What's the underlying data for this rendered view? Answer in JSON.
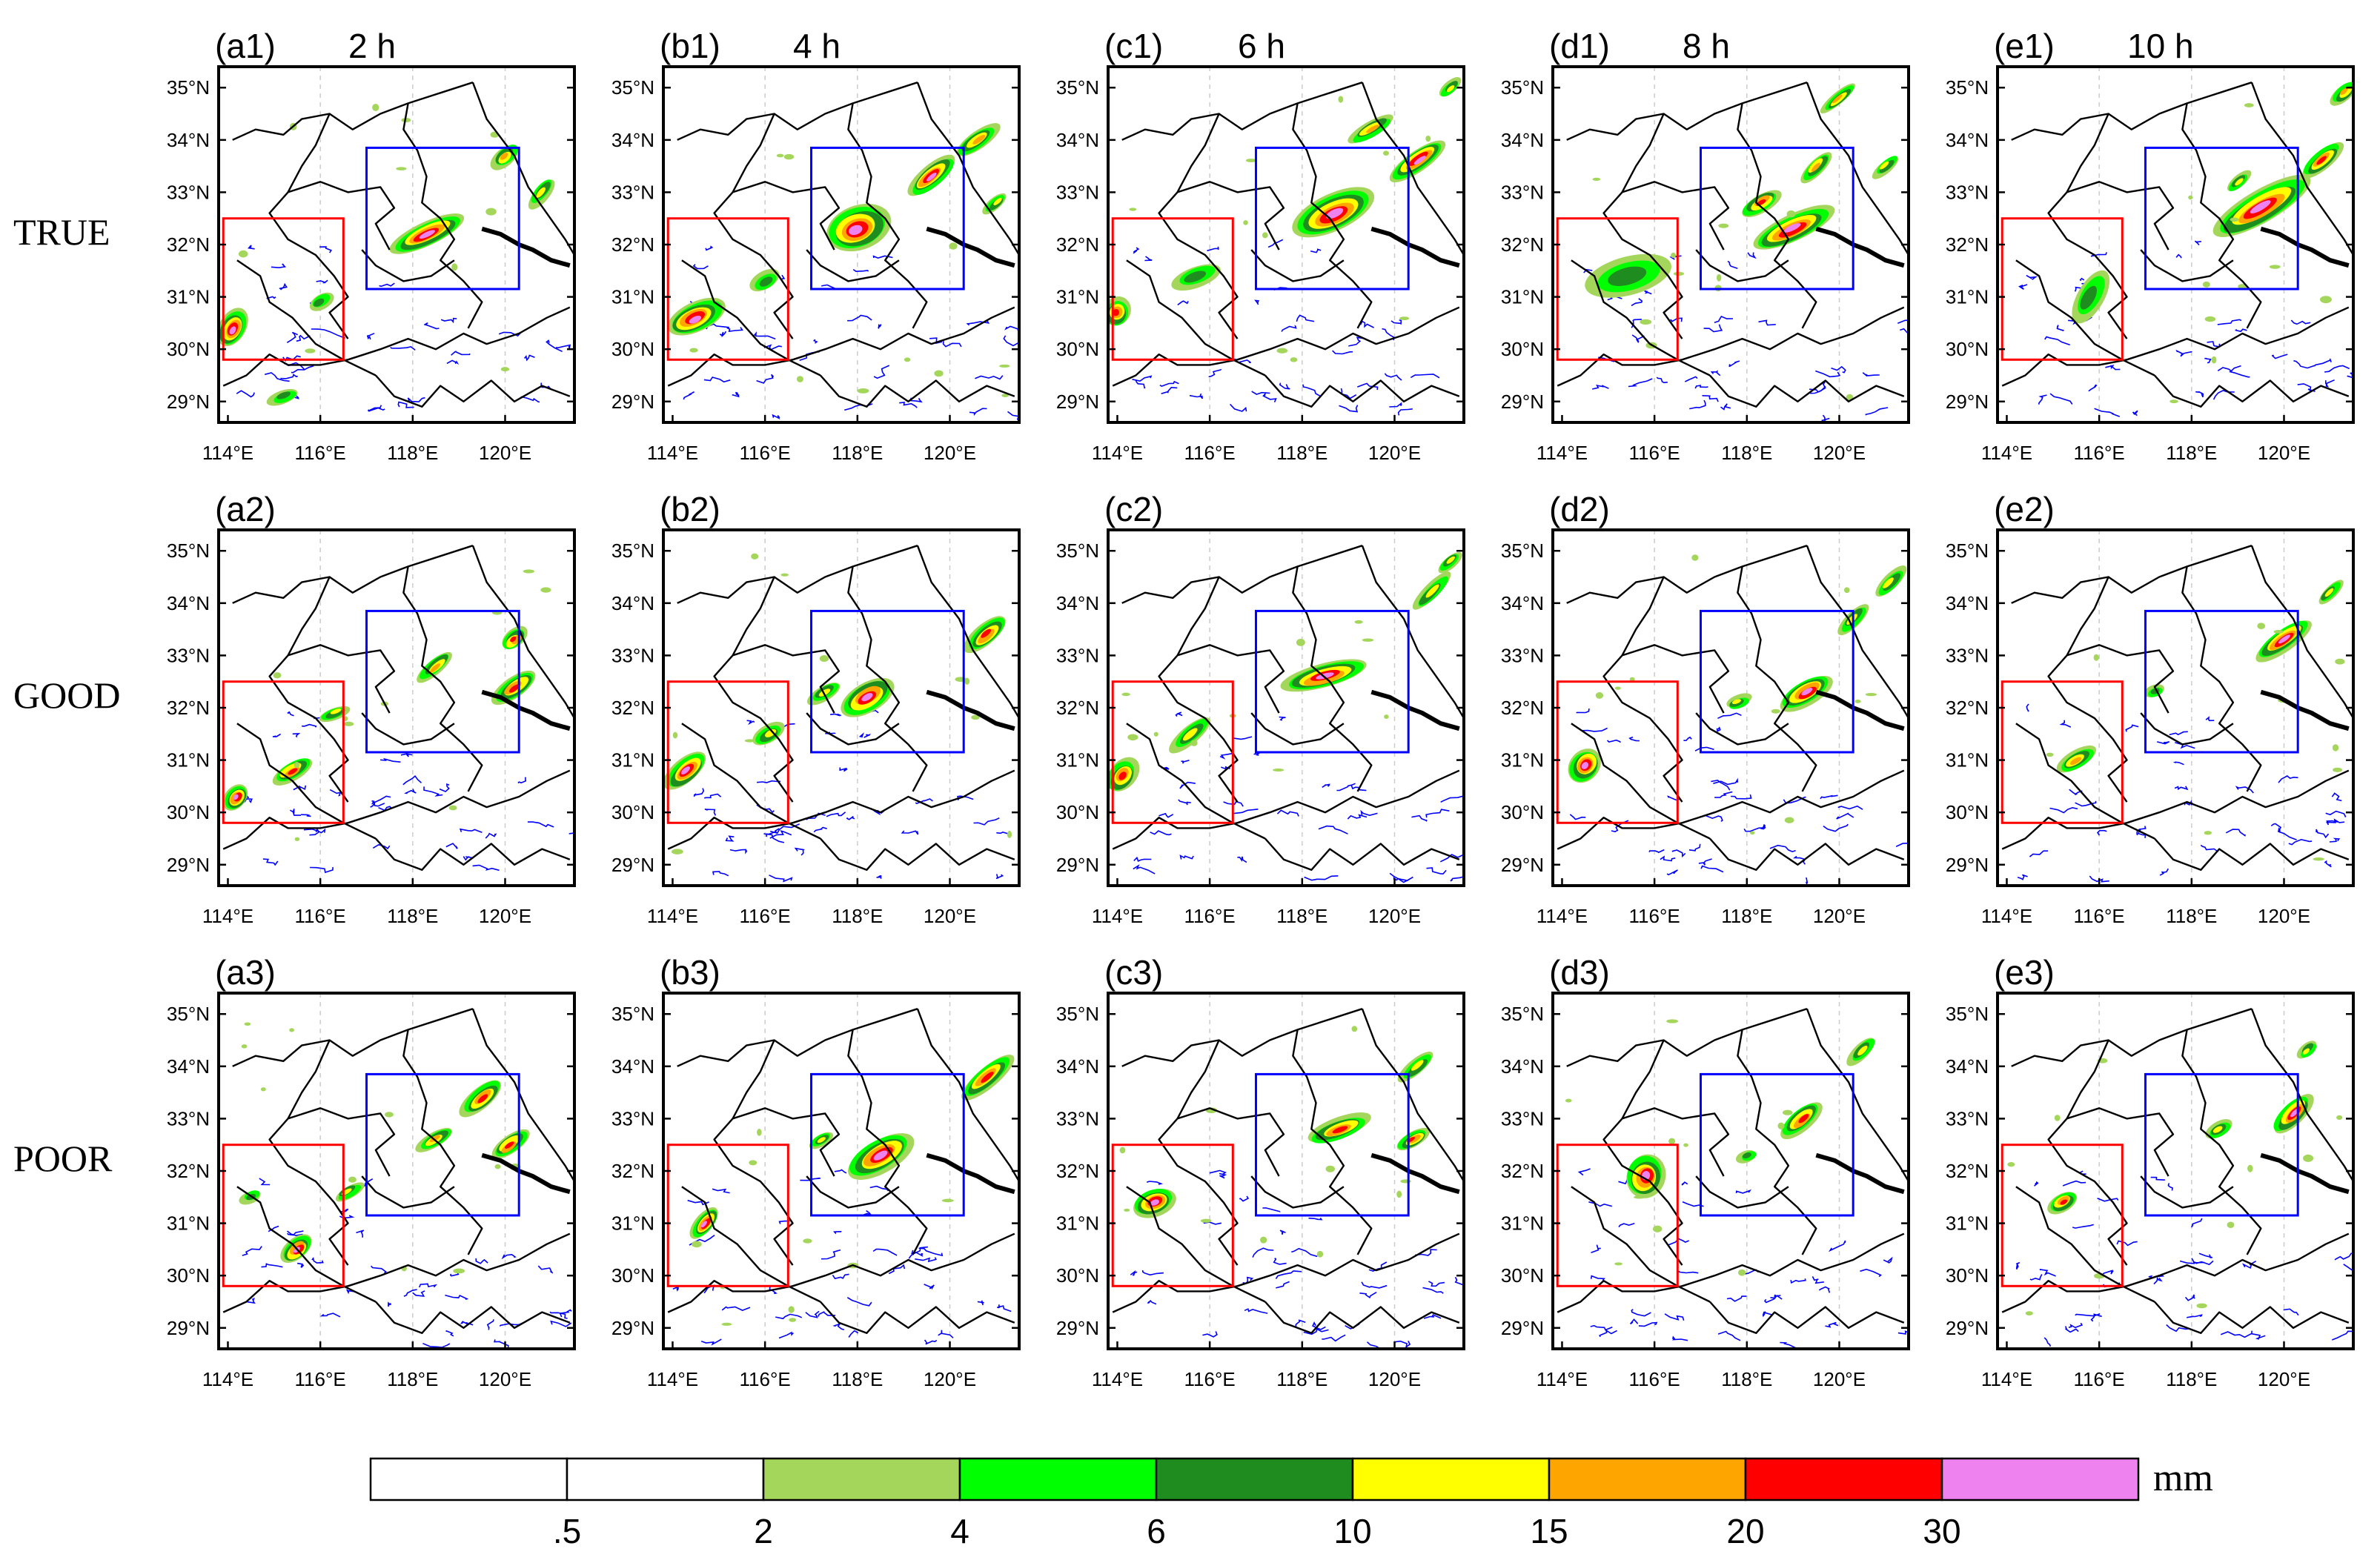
{
  "rows": [
    {
      "label": "TRUE",
      "panels": [
        {
          "tag": "(a1)",
          "time": "2 h"
        },
        {
          "tag": "(b1)",
          "time": "4 h"
        },
        {
          "tag": "(c1)",
          "time": "6 h"
        },
        {
          "tag": "(d1)",
          "time": "8 h"
        },
        {
          "tag": "(e1)",
          "time": "10 h"
        }
      ]
    },
    {
      "label": "GOOD",
      "panels": [
        {
          "tag": "(a2)",
          "time": ""
        },
        {
          "tag": "(b2)",
          "time": ""
        },
        {
          "tag": "(c2)",
          "time": ""
        },
        {
          "tag": "(d2)",
          "time": ""
        },
        {
          "tag": "(e2)",
          "time": ""
        }
      ]
    },
    {
      "label": "POOR",
      "panels": [
        {
          "tag": "(a3)",
          "time": ""
        },
        {
          "tag": "(b3)",
          "time": ""
        },
        {
          "tag": "(c3)",
          "time": ""
        },
        {
          "tag": "(d3)",
          "time": ""
        },
        {
          "tag": "(e3)",
          "time": ""
        }
      ]
    }
  ],
  "axes": {
    "lat_labels": [
      "35°N",
      "34°N",
      "33°N",
      "32°N",
      "31°N",
      "30°N",
      "29°N"
    ],
    "lon_labels": [
      "114°E",
      "116°E",
      "118°E",
      "120°E"
    ]
  },
  "colorbar": {
    "unit": "mm",
    "colors": [
      "#ffffff",
      "#ffffff",
      "#a3d65a",
      "#00ff00",
      "#1f8c1f",
      "#ffff00",
      "#ffa500",
      "#ff0000",
      "#ee82ee"
    ],
    "thresholds": [
      ".5",
      "2",
      "4",
      "6",
      "10",
      "15",
      "20",
      "30"
    ]
  },
  "styles": {
    "box_red": "#ff0000",
    "box_blue": "#0000ff",
    "coast_color": "#0000ff",
    "border_color": "#000000"
  }
}
